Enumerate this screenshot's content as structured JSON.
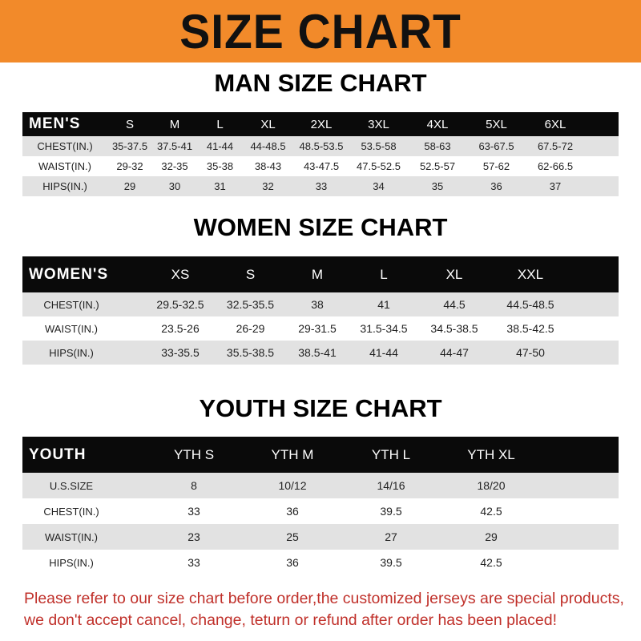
{
  "banner_title": "SIZE CHART",
  "men": {
    "title": "MAN SIZE CHART",
    "header": [
      "MEN'S",
      "S",
      "M",
      "L",
      "XL",
      "2XL",
      "3XL",
      "4XL",
      "5XL",
      "6XL"
    ],
    "rows": [
      [
        "CHEST(IN.)",
        "35-37.5",
        "37.5-41",
        "41-44",
        "44-48.5",
        "48.5-53.5",
        "53.5-58",
        "58-63",
        "63-67.5",
        "67.5-72"
      ],
      [
        "WAIST(IN.)",
        "29-32",
        "32-35",
        "35-38",
        "38-43",
        "43-47.5",
        "47.5-52.5",
        "52.5-57",
        "57-62",
        "62-66.5"
      ],
      [
        "HIPS(IN.)",
        "29",
        "30",
        "31",
        "32",
        "33",
        "34",
        "35",
        "36",
        "37"
      ]
    ]
  },
  "women": {
    "title": "WOMEN SIZE CHART",
    "header": [
      "WOMEN'S",
      "XS",
      "S",
      "M",
      "L",
      "XL",
      "XXL"
    ],
    "rows": [
      [
        "CHEST(IN.)",
        "29.5-32.5",
        "32.5-35.5",
        "38",
        "41",
        "44.5",
        "44.5-48.5"
      ],
      [
        "WAIST(IN.)",
        "23.5-26",
        "26-29",
        "29-31.5",
        "31.5-34.5",
        "34.5-38.5",
        "38.5-42.5"
      ],
      [
        "HIPS(IN.)",
        "33-35.5",
        "35.5-38.5",
        "38.5-41",
        "41-44",
        "44-47",
        "47-50"
      ]
    ]
  },
  "youth": {
    "title": "YOUTH SIZE CHART",
    "header": [
      "YOUTH",
      "YTH S",
      "YTH M",
      "YTH L",
      "YTH XL"
    ],
    "rows": [
      [
        "U.S.SIZE",
        "8",
        "10/12",
        "14/16",
        "18/20"
      ],
      [
        "CHEST(IN.)",
        "33",
        "36",
        "39.5",
        "42.5"
      ],
      [
        "WAIST(IN.)",
        "23",
        "25",
        "27",
        "29"
      ],
      [
        "HIPS(IN.)",
        "33",
        "36",
        "39.5",
        "42.5"
      ]
    ]
  },
  "notice": "Please refer to our size chart before order,the customized jerseys are special products, we don't accept cancel, change, teturn or refund after order has been placed!",
  "colors": {
    "banner": "#F28A2A",
    "header_row": "#0a0a0a",
    "stripe": "#e2e2e2",
    "notice": "#C0302A"
  }
}
